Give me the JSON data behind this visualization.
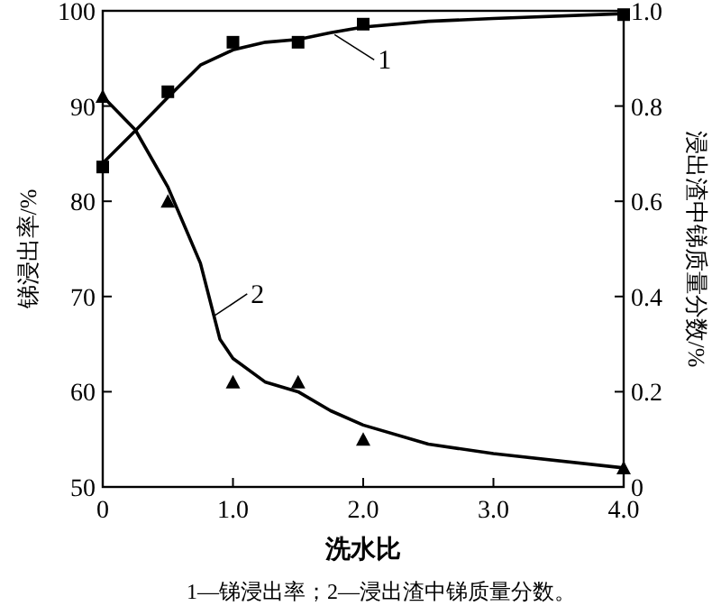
{
  "chart_data": {
    "type": "scatter",
    "xlabel": "洗水比",
    "ylabel": "锑浸出率/%",
    "y2label": "浸出渣中锑质量分数/%",
    "xlim": [
      0,
      4
    ],
    "xticks": [
      0,
      {
        "value": 1,
        "label": "1.0"
      },
      {
        "value": 2,
        "label": "2.0"
      },
      {
        "value": 3,
        "label": "3.0"
      },
      {
        "value": 4,
        "label": "4.0"
      }
    ],
    "ylim": [
      50,
      100
    ],
    "yticks": [
      50,
      60,
      70,
      80,
      90,
      100
    ],
    "y2lim": [
      0,
      1
    ],
    "y2ticks": [
      0,
      0.2,
      0.4,
      0.6,
      0.8,
      {
        "value": 1,
        "label": "1.0"
      }
    ],
    "grid": false,
    "series": [
      {
        "type": "scatter",
        "marker": "square",
        "color": "#000000",
        "x": [
          0,
          0.5,
          1,
          1.5,
          2,
          4
        ],
        "values": [
          83.6,
          91.5,
          96.7,
          96.7,
          98.6,
          99.6
        ]
      },
      {
        "type": "scatter",
        "marker": "triangle",
        "color": "#000000",
        "axis": "y2",
        "x": [
          0,
          0.5,
          1,
          1.5,
          2,
          4
        ],
        "values": [
          0.82,
          0.6,
          0.22,
          0.22,
          0.1,
          0.04
        ]
      },
      {
        "type": "line",
        "marker": "none",
        "color": "#000000",
        "x": [
          0,
          0.25,
          0.5,
          0.75,
          1,
          1.25,
          1.5,
          1.75,
          2,
          2.5,
          3,
          4
        ],
        "values": [
          84,
          87.4,
          90.9,
          94.3,
          95.9,
          96.7,
          97,
          97.7,
          98.3,
          98.9,
          99.2,
          99.7
        ]
      },
      {
        "type": "line",
        "marker": "none",
        "color": "#000000",
        "axis": "y2",
        "x": [
          0,
          0.25,
          0.5,
          0.75,
          0.9,
          1,
          1.25,
          1.5,
          1.75,
          2,
          2.5,
          3,
          4
        ],
        "values": [
          0.82,
          0.75,
          0.63,
          0.47,
          0.31,
          0.27,
          0.22,
          0.2,
          0.16,
          0.13,
          0.09,
          0.07,
          0.04
        ]
      }
    ],
    "annotations": [
      {
        "text": "1",
        "x": 1.78,
        "y": 97.5
      },
      {
        "text": "2",
        "x": 0.86,
        "y": 68
      },
      "1—锑浸出率；2—浸出渣中锑质量分数。"
    ]
  }
}
